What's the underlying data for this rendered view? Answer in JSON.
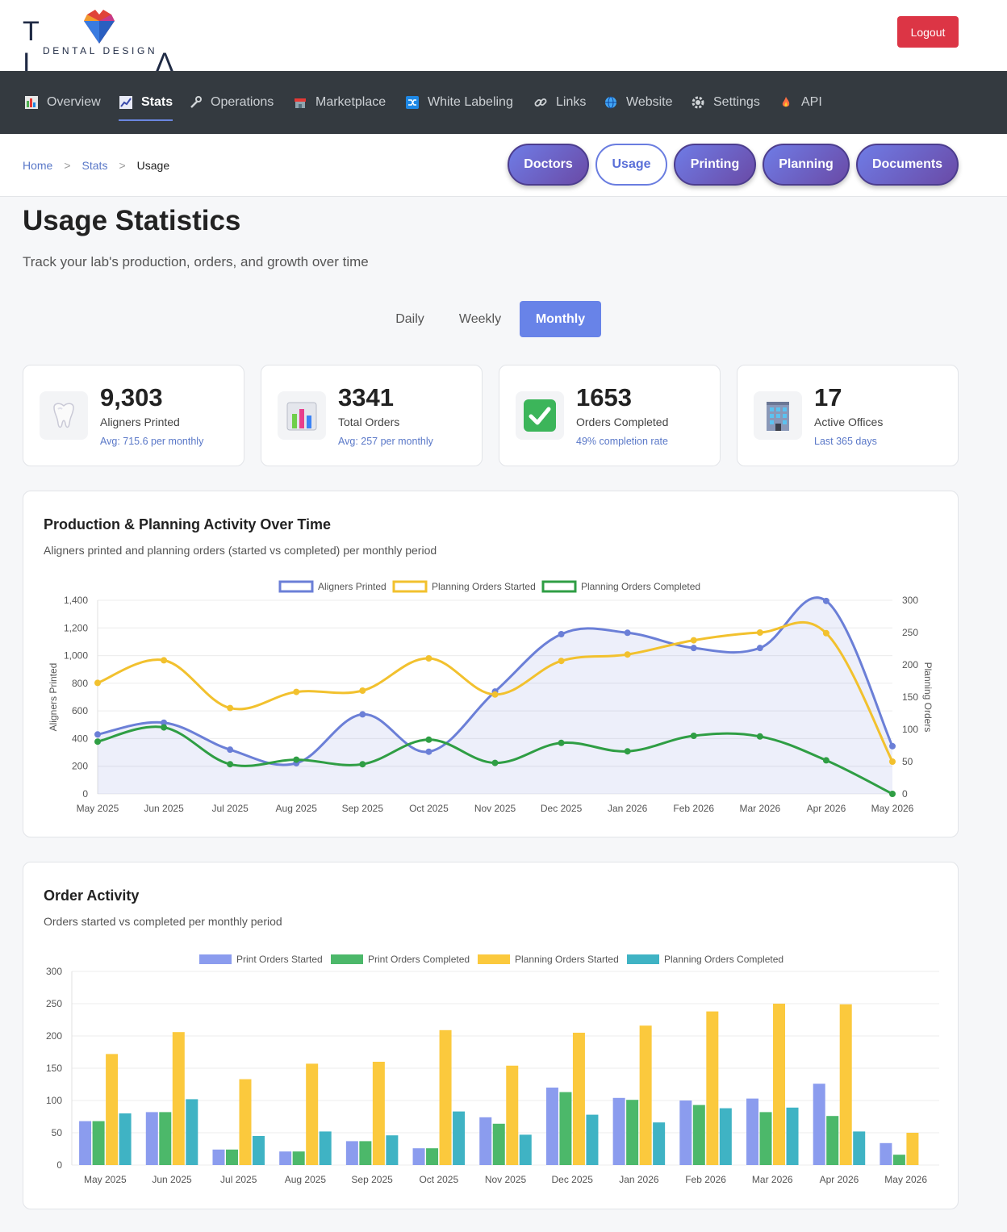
{
  "header": {
    "logo_word": "TI AN",
    "logo_sub": "DENTAL DESIGN",
    "logout_label": "Logout"
  },
  "nav": {
    "items": [
      {
        "label": "Overview",
        "icon": "bar-chart-icon"
      },
      {
        "label": "Stats",
        "icon": "line-chart-icon"
      },
      {
        "label": "Operations",
        "icon": "wrench-icon"
      },
      {
        "label": "Marketplace",
        "icon": "store-icon"
      },
      {
        "label": "White Labeling",
        "icon": "shuffle-icon"
      },
      {
        "label": "Links",
        "icon": "link-icon"
      },
      {
        "label": "Website",
        "icon": "globe-icon"
      },
      {
        "label": "Settings",
        "icon": "gear-icon"
      },
      {
        "label": "API",
        "icon": "fire-icon"
      }
    ],
    "active": "Stats"
  },
  "breadcrumb": {
    "home": "Home",
    "sep": ">",
    "stats": "Stats",
    "current": "Usage"
  },
  "tabs": [
    "Doctors",
    "Usage",
    "Printing",
    "Planning",
    "Documents"
  ],
  "active_tab": "Usage",
  "page": {
    "title": "Usage Statistics",
    "subtitle": "Track your lab's production, orders, and growth over time"
  },
  "period": {
    "options": [
      "Daily",
      "Weekly",
      "Monthly"
    ],
    "selected": "Monthly"
  },
  "cards": [
    {
      "value": "9,303",
      "label": "Aligners Printed",
      "sub": "Avg: 715.6 per monthly",
      "icon": "tooth-icon"
    },
    {
      "value": "3341",
      "label": "Total Orders",
      "sub": "Avg: 257 per monthly",
      "icon": "bar-chart-icon"
    },
    {
      "value": "1653",
      "label": "Orders Completed",
      "sub": "49% completion rate",
      "icon": "check-icon"
    },
    {
      "value": "17",
      "label": "Active Offices",
      "sub": "Last 365 days",
      "icon": "office-building-icon"
    }
  ],
  "panels": {
    "production": {
      "title": "Production & Planning Activity Over Time",
      "subtitle": "Aligners printed and planning orders (started vs completed) per monthly period"
    },
    "orders": {
      "title": "Order Activity",
      "subtitle": "Orders started vs completed per monthly period"
    }
  },
  "chart_data": [
    {
      "type": "line",
      "x": [
        "May 2025",
        "Jun 2025",
        "Jul 2025",
        "Aug 2025",
        "Sep 2025",
        "Oct 2025",
        "Nov 2025",
        "Dec 2025",
        "Jan 2026",
        "Feb 2026",
        "Mar 2026",
        "Apr 2026",
        "May 2026"
      ],
      "ylabel": "Aligners Printed",
      "y2label": "Planning Orders",
      "ylim": [
        0,
        1400
      ],
      "yticks": [
        "0",
        "200",
        "400",
        "600",
        "800",
        "1,000",
        "1,200",
        "1,400"
      ],
      "y2lim": [
        0,
        300
      ],
      "y2ticks": [
        "0",
        "50",
        "100",
        "150",
        "200",
        "250",
        "300"
      ],
      "legend": "top",
      "series": [
        {
          "name": "Aligners Printed",
          "axis": "left",
          "color": "#6b7fd7",
          "fill": true,
          "values": [
            430,
            515,
            320,
            222,
            575,
            305,
            740,
            1155,
            1165,
            1055,
            1055,
            1395,
            345
          ]
        },
        {
          "name": "Planning Orders Started",
          "axis": "right",
          "color": "#f2c12e",
          "values": [
            172,
            207,
            133,
            158,
            160,
            210,
            154,
            206,
            216,
            238,
            250,
            249,
            50
          ]
        },
        {
          "name": "Planning Orders Completed",
          "axis": "right",
          "color": "#2f9e44",
          "values": [
            81,
            103,
            46,
            53,
            46,
            84,
            48,
            79,
            66,
            90,
            89,
            52,
            0
          ]
        }
      ]
    },
    {
      "type": "bar",
      "categories": [
        "May 2025",
        "Jun 2025",
        "Jul 2025",
        "Aug 2025",
        "Sep 2025",
        "Oct 2025",
        "Nov 2025",
        "Dec 2025",
        "Jan 2026",
        "Feb 2026",
        "Mar 2026",
        "Apr 2026",
        "May 2026"
      ],
      "ylim": [
        0,
        300
      ],
      "yticks": [
        "0",
        "50",
        "100",
        "150",
        "200",
        "250",
        "300"
      ],
      "legend": "top",
      "series": [
        {
          "name": "Print Orders Started",
          "color": "#8b9cee",
          "values": [
            68,
            82,
            24,
            21,
            37,
            26,
            74,
            120,
            104,
            100,
            103,
            126,
            34
          ]
        },
        {
          "name": "Print Orders Completed",
          "color": "#4cb86a",
          "values": [
            68,
            82,
            24,
            21,
            37,
            26,
            64,
            113,
            101,
            93,
            82,
            76,
            16
          ]
        },
        {
          "name": "Planning Orders Started",
          "color": "#fbc93d",
          "values": [
            172,
            206,
            133,
            157,
            160,
            209,
            154,
            205,
            216,
            238,
            250,
            249,
            50
          ]
        },
        {
          "name": "Planning Orders Completed",
          "color": "#3fb3c4",
          "values": [
            80,
            102,
            45,
            52,
            46,
            83,
            47,
            78,
            66,
            88,
            89,
            52,
            0
          ]
        }
      ]
    }
  ]
}
